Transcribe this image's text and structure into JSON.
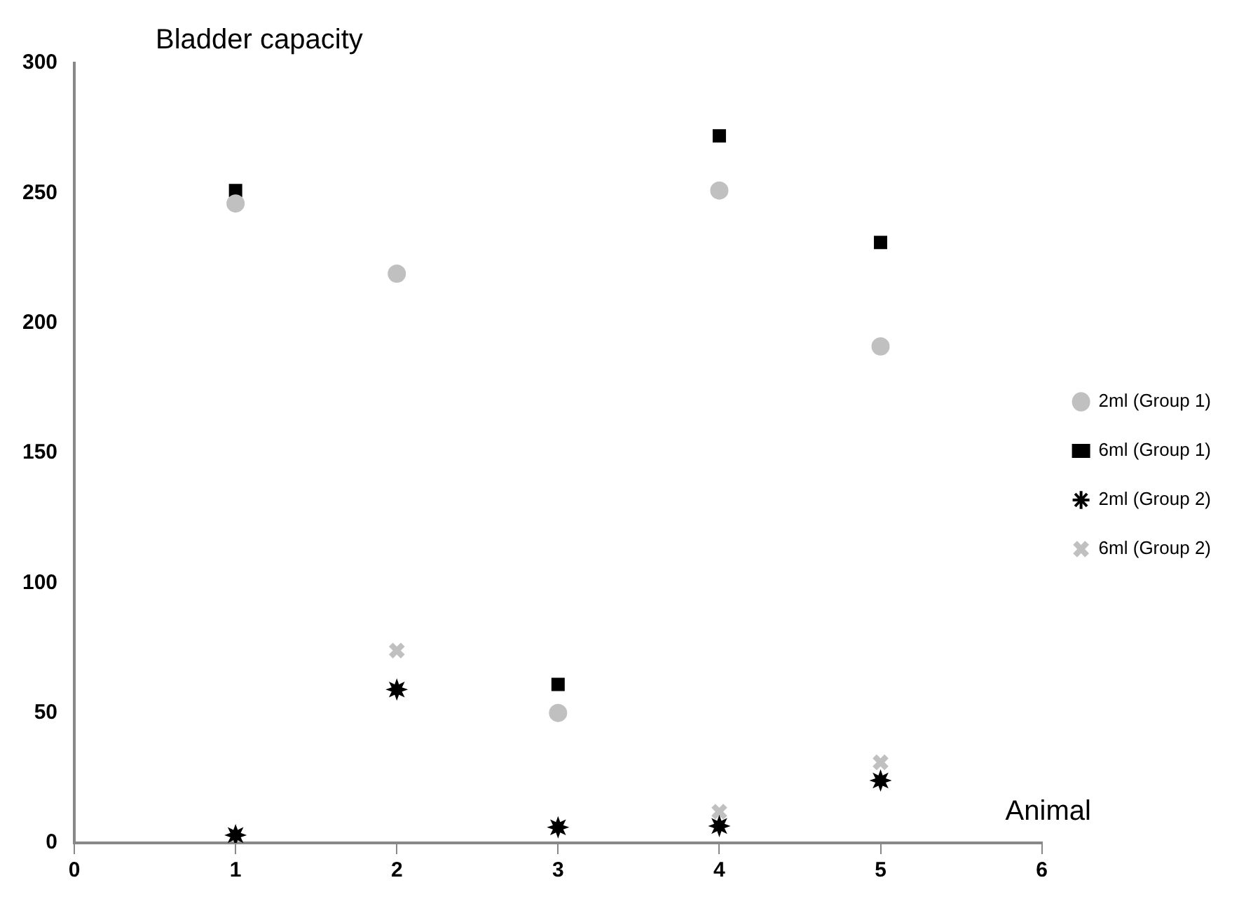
{
  "chart_data": {
    "type": "scatter",
    "ylabel": "Bladder capacity",
    "xlabel": "Animal",
    "x": [
      1,
      2,
      3,
      4,
      5
    ],
    "series": [
      {
        "name": "2ml (Group 1)",
        "color": "#c0c0c0",
        "marker": "circle",
        "values": [
          246,
          219,
          50,
          251,
          191
        ]
      },
      {
        "name": "6ml (Group 1)",
        "color": "#000000",
        "marker": "square",
        "values": [
          251,
          null,
          61,
          272,
          231
        ]
      },
      {
        "name": "2ml (Group 2)",
        "color": "#000000",
        "marker": "star",
        "values": [
          3,
          59,
          6,
          6.5,
          24
        ]
      },
      {
        "name": "6ml (Group 2)",
        "color": "#c0c0c0",
        "marker": "cross",
        "values": [
          null,
          74,
          null,
          12,
          31
        ]
      }
    ],
    "xlim": [
      0,
      6
    ],
    "xticks": [
      0,
      1,
      2,
      3,
      4,
      5,
      6
    ],
    "ylim": [
      0,
      300
    ],
    "yticks": [
      0,
      50,
      100,
      150,
      200,
      250,
      300
    ],
    "grid": false,
    "legend": "right"
  }
}
